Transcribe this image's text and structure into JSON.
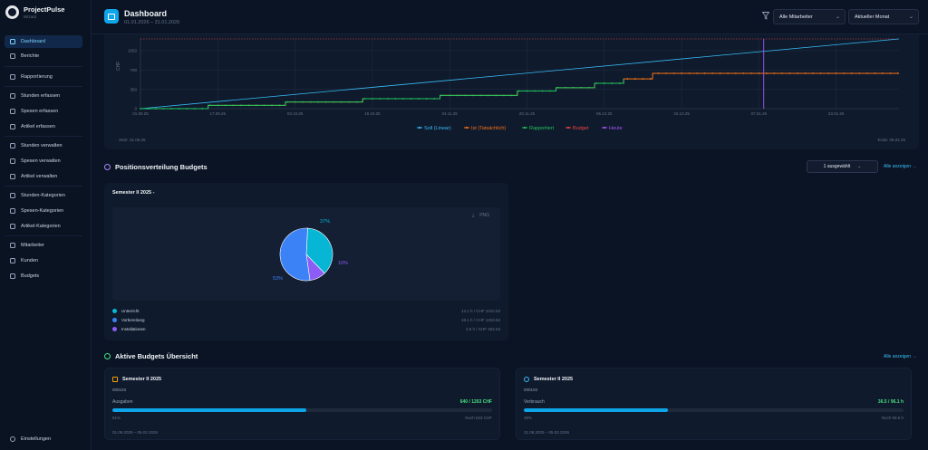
{
  "app": {
    "name": "ProjectPulse",
    "user": "Wizard"
  },
  "sidebar": {
    "items": [
      {
        "label": "Dashboard",
        "icon": "dashboard-icon",
        "active": true
      },
      {
        "label": "Berichte",
        "icon": "report-icon"
      },
      {
        "label": "Rapportierung",
        "icon": "calendar-icon"
      },
      {
        "label": "Stunden erfassen",
        "icon": "clock-icon"
      },
      {
        "label": "Spesen erfassen",
        "icon": "receipt-icon"
      },
      {
        "label": "Artikel erfassen",
        "icon": "box-icon"
      },
      {
        "label": "Stunden verwalten",
        "icon": "clock-icon"
      },
      {
        "label": "Spesen verwalten",
        "icon": "receipt-icon"
      },
      {
        "label": "Artikel verwalten",
        "icon": "box-icon"
      },
      {
        "label": "Stunden-Kategorien",
        "icon": "tag-icon"
      },
      {
        "label": "Spesen-Kategorien",
        "icon": "tag-icon"
      },
      {
        "label": "Artikel-Kategorien",
        "icon": "tag-icon"
      },
      {
        "label": "Mitarbeiter",
        "icon": "users-icon"
      },
      {
        "label": "Kunden",
        "icon": "user-icon"
      },
      {
        "label": "Budgets",
        "icon": "wallet-icon"
      }
    ],
    "settings": "Einstellungen"
  },
  "header": {
    "title": "Dashboard",
    "subtitle": "01.01.2026 – 31.01.2026",
    "filter_employee": "Alle Mitarbeiter",
    "filter_period": "Aktueller Monat"
  },
  "budget_chart": {
    "start_label": "Start: 31.08.25",
    "end_label": "Ende: 05.02.26",
    "y_axis_unit": "CHF",
    "legend": [
      "Soll (Linear)",
      "Ist (Tatsächlich)",
      "Rapportiert",
      "Budget",
      "Heute"
    ],
    "colors": {
      "soll": "#38bdf8",
      "ist": "#f97316",
      "rapportiert": "#22c55e",
      "budget": "#ef4444",
      "heute": "#a855f7"
    }
  },
  "chart_data": {
    "type": "line",
    "x_ticks": [
      "01.09.25",
      "17.09.25",
      "03.10.25",
      "19.10.25",
      "04.11.25",
      "20.11.25",
      "06.12.25",
      "22.12.25",
      "07.01.26",
      "23.01.26"
    ],
    "y_ticks": [
      0,
      350,
      700,
      1050
    ],
    "ylim": [
      0,
      1263
    ],
    "series": [
      {
        "name": "Soll (Linear)",
        "points": [
          [
            0,
            0
          ],
          [
            157,
            1263
          ]
        ]
      },
      {
        "name": "Ist (Tatsächlich)",
        "points": [
          [
            0,
            0
          ],
          [
            14,
            60
          ],
          [
            30,
            120
          ],
          [
            46,
            180
          ],
          [
            62,
            240
          ],
          [
            78,
            320
          ],
          [
            86,
            380
          ],
          [
            94,
            460
          ],
          [
            100,
            540
          ],
          [
            106,
            640
          ],
          [
            157,
            640
          ]
        ]
      },
      {
        "name": "Rapportiert",
        "points": [
          [
            0,
            0
          ],
          [
            14,
            60
          ],
          [
            30,
            120
          ],
          [
            46,
            180
          ],
          [
            62,
            240
          ],
          [
            78,
            320
          ],
          [
            86,
            380
          ],
          [
            94,
            460
          ],
          [
            100,
            540
          ]
        ]
      },
      {
        "name": "Budget",
        "value": 1263
      },
      {
        "name": "Heute",
        "x": 129
      }
    ]
  },
  "positions": {
    "title": "Positionsverteilung Budgets",
    "select_label": "1 ausgewählt",
    "link": "Alle anzeigen →",
    "card_title": "Semester II 2025 -",
    "export": "PNG",
    "slices": [
      {
        "name": "Unterricht",
        "pct": "37%",
        "value": 37,
        "color": "#06b6d4",
        "detail": "13.1 h / CHF 1010.53"
      },
      {
        "name": "Vorbereitung",
        "pct": "53%",
        "value": 53,
        "color": "#3b82f6",
        "detail": "18.1 h / CHF 1463.53"
      },
      {
        "name": "Installationen",
        "pct": "10%",
        "value": 10,
        "color": "#8b5cf6",
        "detail": "3.5 h / CHF 252.53"
      }
    ]
  },
  "active_budgets": {
    "title": "Aktive Budgets Übersicht",
    "link": "Alle anzeigen →",
    "cards": [
      {
        "name": "Semester II 2025",
        "code": "000103",
        "label": "Ausgaben",
        "value": "640 / 1263 CHF",
        "fill": 0.51,
        "pct": "51%",
        "rest": "Noch 623 CHF",
        "dates": "01.09.2025 – 05.02.2026"
      },
      {
        "name": "Semester II 2025",
        "code": "000103",
        "label": "Verbrauch",
        "value": "36.5 / 96.1 h",
        "fill": 0.38,
        "pct": "38%",
        "rest": "Noch 59.6 h",
        "dates": "31.08.2025 – 05.02.2026"
      }
    ]
  }
}
